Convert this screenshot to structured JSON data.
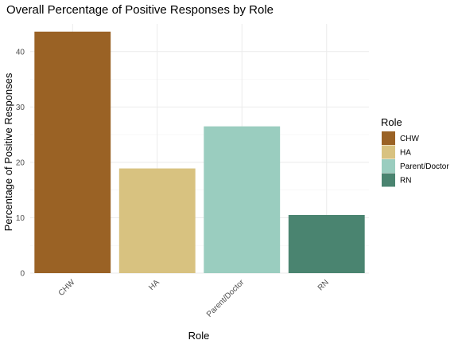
{
  "chart_data": {
    "type": "bar",
    "title": "Overall Percentage of Positive Responses by Role",
    "xlabel": "Role",
    "ylabel": "Percentage of Positive Responses",
    "categories": [
      "CHW",
      "HA",
      "Parent/Doctor",
      "RN"
    ],
    "values": [
      43.6,
      18.9,
      26.5,
      10.5
    ],
    "colors": [
      "#9A6225",
      "#D8C280",
      "#9ACDBF",
      "#4A8470"
    ],
    "ylim": [
      0,
      45
    ],
    "yticks": [
      0,
      10,
      20,
      30,
      40
    ],
    "grid": true,
    "legend": {
      "title": "Role",
      "position": "right",
      "entries": [
        "CHW",
        "HA",
        "Parent/Doctor",
        "RN"
      ]
    }
  }
}
